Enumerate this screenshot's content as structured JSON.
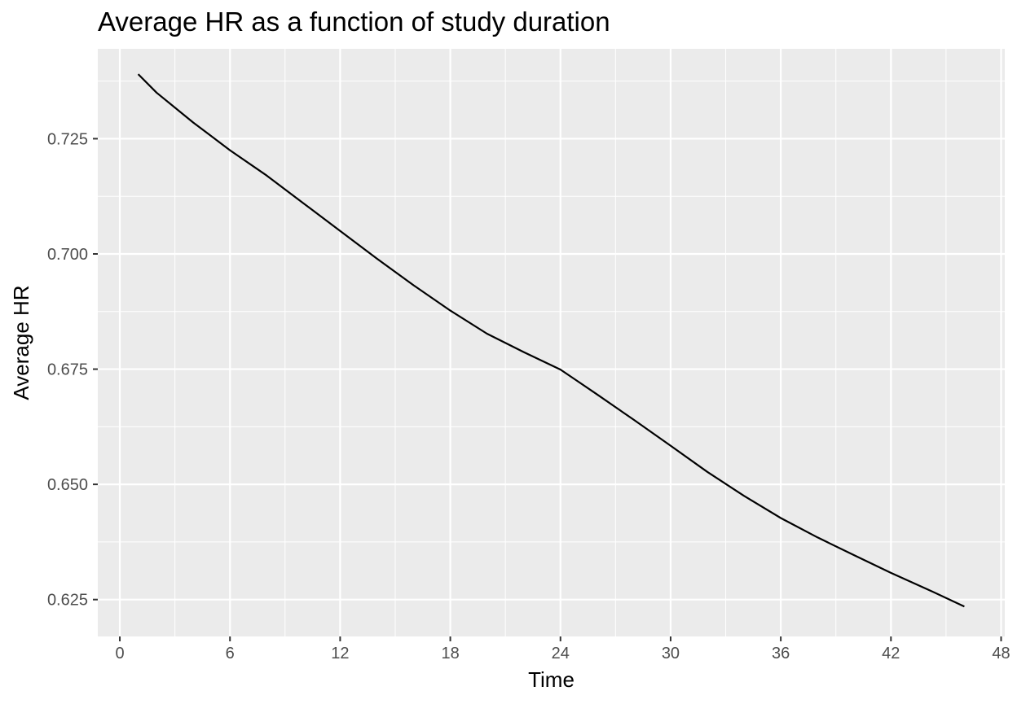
{
  "chart_data": {
    "type": "line",
    "title": "Average HR as a function of study duration",
    "xlabel": "Time",
    "ylabel": "Average HR",
    "xlim": [
      -1.2,
      48.2
    ],
    "ylim": [
      0.617,
      0.7445
    ],
    "x_ticks": [
      0,
      6,
      12,
      18,
      24,
      30,
      36,
      42,
      48
    ],
    "y_ticks": [
      0.625,
      0.65,
      0.675,
      0.7,
      0.725
    ],
    "x_tick_labels": [
      "0",
      "6",
      "12",
      "18",
      "24",
      "30",
      "36",
      "42",
      "48"
    ],
    "y_tick_labels": [
      "0.625",
      "0.650",
      "0.675",
      "0.700",
      "0.725"
    ],
    "grid": true,
    "panel_background": "#ebebeb",
    "grid_color": "#ffffff",
    "line_color": "#000000",
    "series": [
      {
        "x": [
          1,
          2,
          4,
          6,
          8,
          10,
          12,
          14,
          16,
          18,
          20,
          22,
          24,
          25,
          26,
          28,
          30,
          32,
          34,
          36,
          38,
          40,
          42,
          44,
          46
        ],
        "y": [
          0.739,
          0.735,
          0.7285,
          0.7225,
          0.717,
          0.711,
          0.705,
          0.699,
          0.6932,
          0.6877,
          0.6827,
          0.6787,
          0.6749,
          0.6722,
          0.6695,
          0.664,
          0.6584,
          0.6527,
          0.6475,
          0.6427,
          0.6385,
          0.6346,
          0.6308,
          0.6272,
          0.6235
        ]
      }
    ]
  }
}
